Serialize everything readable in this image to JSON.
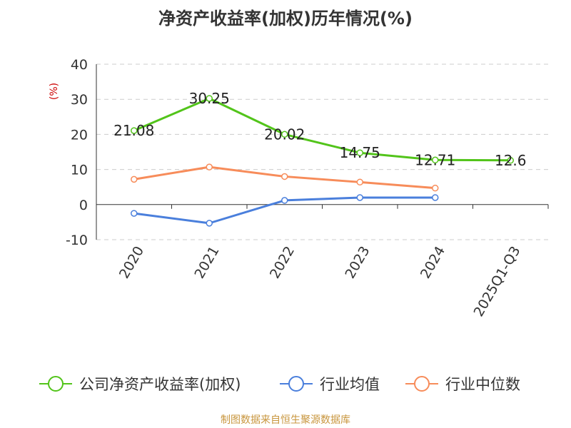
{
  "chart_data": {
    "type": "line",
    "title": "净资产收益率(加权)历年情况(%)",
    "ylabel": "(%)",
    "xlabel": "",
    "categories": [
      "2020",
      "2021",
      "2022",
      "2023",
      "2024",
      "2025Q1-Q3"
    ],
    "ylim": [
      -10,
      40
    ],
    "yticks": [
      -10,
      0,
      10,
      20,
      30,
      40
    ],
    "grid": true,
    "legend_position": "bottom",
    "series": [
      {
        "name": "公司净资产收益率(加权)",
        "color": "#52c41a",
        "values": [
          21.08,
          30.25,
          20.02,
          14.75,
          12.71,
          12.6
        ],
        "labels": [
          "21.08",
          "30.25",
          "20.02",
          "14.75",
          "12.71",
          "12.6"
        ]
      },
      {
        "name": "行业均值",
        "color": "#4a7fdc",
        "values": [
          -2.5,
          -5.3,
          1.2,
          2.0,
          2.0,
          null
        ]
      },
      {
        "name": "行业中位数",
        "color": "#f78c5a",
        "values": [
          7.2,
          10.7,
          8.0,
          6.4,
          4.7,
          null
        ]
      }
    ]
  },
  "footer": "制图数据来自恒生聚源数据库"
}
